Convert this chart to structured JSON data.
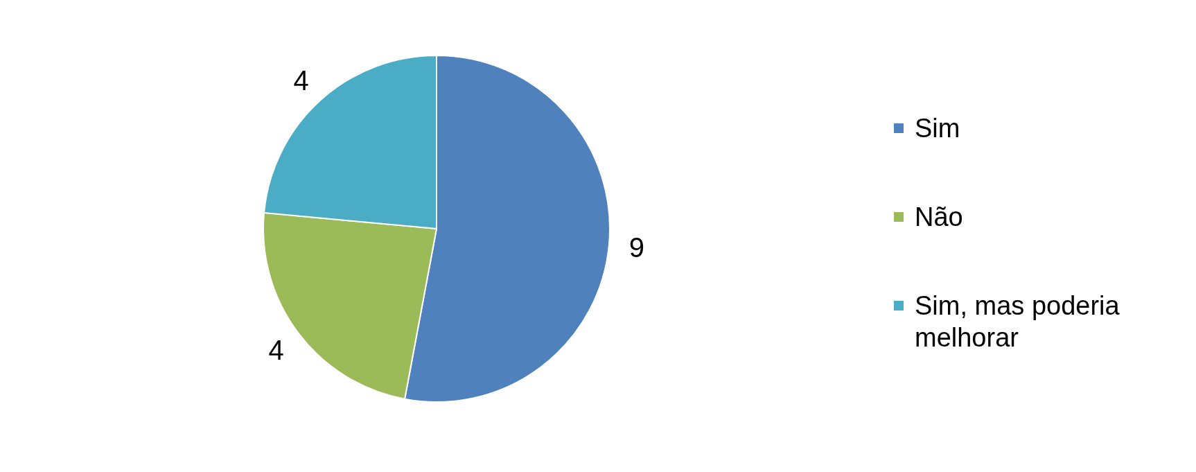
{
  "chart_data": {
    "type": "pie",
    "categories": [
      "Sim",
      "Não",
      "Sim, mas poderia melhorar"
    ],
    "values": [
      9,
      4,
      4
    ],
    "colors": [
      "#4f81bd",
      "#9bbb59",
      "#4bacc6"
    ],
    "data_labels": true,
    "legend": "right"
  }
}
